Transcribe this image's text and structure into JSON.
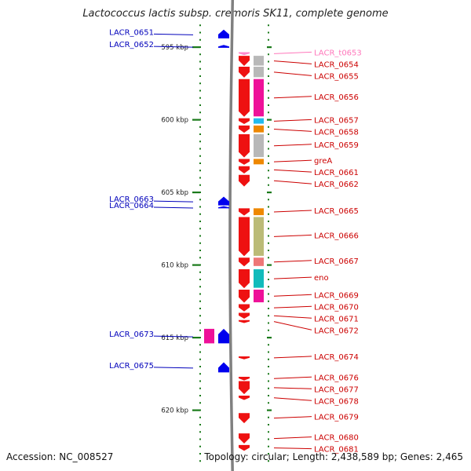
{
  "title": "Lactococcus lactis subsp. cremoris SK11, complete genome",
  "footer": {
    "accession": "Accession: NC_008527",
    "summary": "Topology: circular; Length: 2,438,589 bp; Genes: 2,465"
  },
  "colors": {
    "backbone": "#808080",
    "forward_gene": "#ee1111",
    "reverse_gene": "#0000ee",
    "trna": "#ff88cc",
    "forward_label": "#cc0000",
    "reverse_label": "#0000bb",
    "trna_label": "#ff77bb",
    "tick": "#1a7a1a",
    "cog_gray": "#b8b8b8",
    "cog_magenta": "#ee1199",
    "cog_cyan": "#22bbee",
    "cog_orange": "#ee8800",
    "cog_olive": "#bbbb77",
    "cog_salmon": "#ee7777",
    "cog_teal": "#11bbbb"
  },
  "chart_data": {
    "type": "linear-genome-map",
    "ruler": {
      "start_kbp": 592.7,
      "end_kbp": 623.6,
      "labeled_kbp": [
        595,
        600,
        605,
        610,
        615,
        620
      ]
    },
    "tick_labels": [
      "595 kbp",
      "600 kbp",
      "605 kbp",
      "610 kbp",
      "615 kbp",
      "620 kbp"
    ],
    "forward_genes": [
      {
        "label": "LACR_t0653",
        "kind": "trna",
        "start_kbp": 595.35,
        "end_kbp": 595.55,
        "cog": null
      },
      {
        "label": "LACR_0654",
        "start_kbp": 595.6,
        "end_kbp": 596.3,
        "cog": "gray"
      },
      {
        "label": "LACR_0655",
        "start_kbp": 596.35,
        "end_kbp": 597.1,
        "cog": "gray"
      },
      {
        "label": "LACR_0656",
        "start_kbp": 597.2,
        "end_kbp": 599.8,
        "cog": "magenta"
      },
      {
        "label": "LACR_0657",
        "start_kbp": 599.9,
        "end_kbp": 600.3,
        "cog": "cyan"
      },
      {
        "label": "LACR_0658",
        "start_kbp": 600.4,
        "end_kbp": 600.9,
        "cog": "orange"
      },
      {
        "label": "LACR_0659",
        "start_kbp": 601.0,
        "end_kbp": 602.6,
        "cog": "gray"
      },
      {
        "label": "greA",
        "start_kbp": 602.7,
        "end_kbp": 603.1,
        "cog": "orange"
      },
      {
        "label": "LACR_0661",
        "start_kbp": 603.2,
        "end_kbp": 603.7,
        "cog": null
      },
      {
        "label": "LACR_0662",
        "start_kbp": 603.8,
        "end_kbp": 604.6,
        "cog": null
      },
      {
        "label": "LACR_0665",
        "start_kbp": 606.1,
        "end_kbp": 606.6,
        "cog": "orange"
      },
      {
        "label": "LACR_0666",
        "start_kbp": 606.7,
        "end_kbp": 609.4,
        "cog": "olive"
      },
      {
        "label": "LACR_0667",
        "start_kbp": 609.5,
        "end_kbp": 610.1,
        "cog": "salmon"
      },
      {
        "label": "eno",
        "start_kbp": 610.3,
        "end_kbp": 611.6,
        "cog": "teal"
      },
      {
        "label": "LACR_0669",
        "start_kbp": 611.7,
        "end_kbp": 612.6,
        "cog": "magenta"
      },
      {
        "label": "LACR_0670",
        "start_kbp": 612.7,
        "end_kbp": 613.2,
        "cog": null
      },
      {
        "label": "LACR_0671",
        "start_kbp": 613.3,
        "end_kbp": 613.7,
        "cog": null
      },
      {
        "label": "LACR_0672",
        "start_kbp": 613.8,
        "end_kbp": 614.0,
        "cog": null
      },
      {
        "label": "LACR_0674",
        "start_kbp": 616.3,
        "end_kbp": 616.5,
        "cog": null
      },
      {
        "label": "LACR_0676",
        "start_kbp": 617.7,
        "end_kbp": 617.95,
        "cog": null
      },
      {
        "label": "LACR_0677",
        "start_kbp": 618.0,
        "end_kbp": 618.9,
        "cog": null
      },
      {
        "label": "LACR_0678",
        "start_kbp": 619.0,
        "end_kbp": 619.3,
        "cog": null
      },
      {
        "label": "LACR_0679",
        "start_kbp": 620.2,
        "end_kbp": 620.9,
        "cog": null
      },
      {
        "label": "LACR_0680",
        "start_kbp": 621.6,
        "end_kbp": 622.3,
        "cog": null
      },
      {
        "label": "LACR_0681",
        "start_kbp": 622.4,
        "end_kbp": 622.8,
        "cog": null
      }
    ],
    "reverse_genes": [
      {
        "label": "LACR_0651",
        "start_kbp": 593.8,
        "end_kbp": 594.4,
        "cog": null
      },
      {
        "label": "LACR_0652",
        "start_kbp": 594.85,
        "end_kbp": 595.05,
        "cog": null
      },
      {
        "label": "LACR_0663",
        "start_kbp": 605.3,
        "end_kbp": 605.9,
        "cog": null
      },
      {
        "label": "LACR_0664",
        "start_kbp": 605.95,
        "end_kbp": 606.1,
        "cog": null
      },
      {
        "label": "LACR_0673",
        "start_kbp": 614.4,
        "end_kbp": 615.4,
        "cog": "magenta"
      },
      {
        "label": "LACR_0675",
        "start_kbp": 616.7,
        "end_kbp": 617.4,
        "cog": null
      }
    ]
  }
}
